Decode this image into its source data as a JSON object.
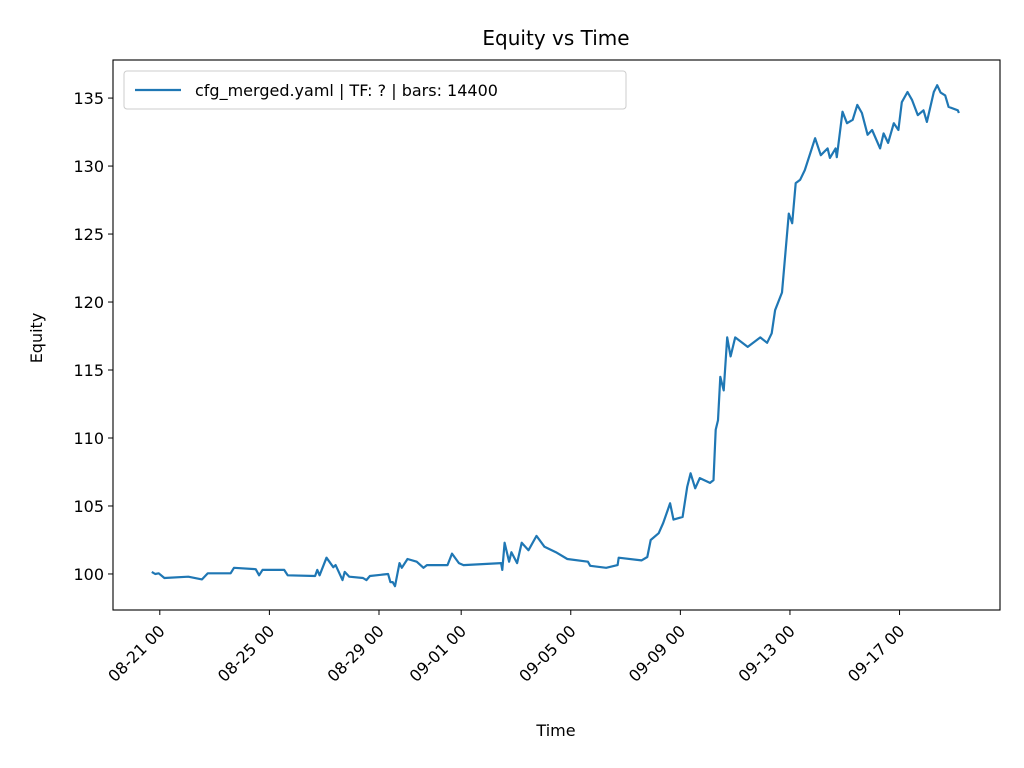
{
  "chart_data": {
    "type": "line",
    "title": "Equity vs Time",
    "xlabel": "Time",
    "ylabel": "Equity",
    "xlim": [
      "08-19 07:00",
      "09-20 16:00"
    ],
    "ylim": [
      97.35,
      137.8
    ],
    "grid": false,
    "legend_position": "top-left",
    "x_ticks": [
      "08-21 00",
      "08-25 00",
      "08-29 00",
      "09-01 00",
      "09-05 00",
      "09-09 00",
      "09-13 00",
      "09-17 00"
    ],
    "y_ticks": [
      100,
      105,
      110,
      115,
      120,
      125,
      130,
      135
    ],
    "series": [
      {
        "name": "cfg_merged.yaml | TF: ? | bars: 14400",
        "color": "#1f77b4",
        "points": [
          [
            "08-20 17:00",
            100.15
          ],
          [
            "08-20 20:00",
            100.0
          ],
          [
            "08-20 23:00",
            100.05
          ],
          [
            "08-21 04:00",
            99.7
          ],
          [
            "08-22 01:00",
            99.8
          ],
          [
            "08-22 13:00",
            99.6
          ],
          [
            "08-22 18:00",
            100.05
          ],
          [
            "08-23 14:00",
            100.05
          ],
          [
            "08-23 17:00",
            100.45
          ],
          [
            "08-24 12:00",
            100.35
          ],
          [
            "08-24 15:00",
            99.9
          ],
          [
            "08-24 18:00",
            100.3
          ],
          [
            "08-25 13:00",
            100.3
          ],
          [
            "08-25 16:00",
            99.9
          ],
          [
            "08-26 16:00",
            99.85
          ],
          [
            "08-26 18:00",
            100.3
          ],
          [
            "08-26 20:00",
            99.9
          ],
          [
            "08-27 02:00",
            101.2
          ],
          [
            "08-27 08:00",
            100.5
          ],
          [
            "08-27 10:00",
            100.65
          ],
          [
            "08-27 16:00",
            99.55
          ],
          [
            "08-27 18:00",
            100.15
          ],
          [
            "08-27 22:00",
            99.8
          ],
          [
            "08-28 10:00",
            99.7
          ],
          [
            "08-28 13:00",
            99.55
          ],
          [
            "08-28 16:00",
            99.85
          ],
          [
            "08-29 08:00",
            100.0
          ],
          [
            "08-29 10:00",
            99.4
          ],
          [
            "08-29 12:00",
            99.4
          ],
          [
            "08-29 14:00",
            99.1
          ],
          [
            "08-29 18:00",
            100.8
          ],
          [
            "08-29 20:00",
            100.45
          ],
          [
            "08-30 01:00",
            101.1
          ],
          [
            "08-30 09:00",
            100.9
          ],
          [
            "08-30 15:00",
            100.45
          ],
          [
            "08-30 18:00",
            100.65
          ],
          [
            "08-31 12:00",
            100.65
          ],
          [
            "08-31 16:00",
            101.5
          ],
          [
            "08-31 22:00",
            100.8
          ],
          [
            "09-01 02:00",
            100.65
          ],
          [
            "09-02 11:00",
            100.8
          ],
          [
            "09-02 12:00",
            100.3
          ],
          [
            "09-02 14:00",
            102.3
          ],
          [
            "09-02 18:00",
            100.9
          ],
          [
            "09-02 20:00",
            101.6
          ],
          [
            "09-03 01:00",
            100.8
          ],
          [
            "09-03 05:00",
            102.3
          ],
          [
            "09-03 11:00",
            101.75
          ],
          [
            "09-03 18:00",
            102.8
          ],
          [
            "09-04 01:00",
            102.0
          ],
          [
            "09-04 11:00",
            101.6
          ],
          [
            "09-04 21:00",
            101.1
          ],
          [
            "09-05 15:00",
            100.9
          ],
          [
            "09-05 17:00",
            100.6
          ],
          [
            "09-06 07:00",
            100.45
          ],
          [
            "09-06 17:00",
            100.65
          ],
          [
            "09-06 18:00",
            101.2
          ],
          [
            "09-07 14:00",
            101.0
          ],
          [
            "09-07 19:00",
            101.25
          ],
          [
            "09-07 22:00",
            102.5
          ],
          [
            "09-08 05:00",
            103.0
          ],
          [
            "09-08 09:00",
            103.75
          ],
          [
            "09-08 15:00",
            105.2
          ],
          [
            "09-08 18:00",
            104.0
          ],
          [
            "09-09 02:00",
            104.2
          ],
          [
            "09-09 06:00",
            106.4
          ],
          [
            "09-09 09:00",
            107.4
          ],
          [
            "09-09 13:00",
            106.3
          ],
          [
            "09-09 17:00",
            107.05
          ],
          [
            "09-10 02:00",
            106.7
          ],
          [
            "09-10 05:00",
            106.9
          ],
          [
            "09-10 07:00",
            110.6
          ],
          [
            "09-10 09:00",
            111.3
          ],
          [
            "09-10 11:00",
            114.5
          ],
          [
            "09-10 14:00",
            113.5
          ],
          [
            "09-10 17:00",
            117.4
          ],
          [
            "09-10 20:00",
            116.0
          ],
          [
            "09-11 00:00",
            117.4
          ],
          [
            "09-11 11:00",
            116.7
          ],
          [
            "09-11 22:00",
            117.4
          ],
          [
            "09-12 04:00",
            117.0
          ],
          [
            "09-12 08:00",
            117.7
          ],
          [
            "09-12 11:00",
            119.4
          ],
          [
            "09-12 17:00",
            120.7
          ],
          [
            "09-12 20:00",
            123.6
          ],
          [
            "09-12 23:00",
            126.5
          ],
          [
            "09-13 02:00",
            125.8
          ],
          [
            "09-13 05:00",
            128.75
          ],
          [
            "09-13 09:00",
            129.0
          ],
          [
            "09-13 13:00",
            129.7
          ],
          [
            "09-13 18:00",
            131.0
          ],
          [
            "09-13 22:00",
            132.05
          ],
          [
            "09-14 03:00",
            130.8
          ],
          [
            "09-14 09:00",
            131.3
          ],
          [
            "09-14 11:00",
            130.6
          ],
          [
            "09-14 16:00",
            131.3
          ],
          [
            "09-14 17:00",
            130.65
          ],
          [
            "09-14 22:00",
            134.0
          ],
          [
            "09-15 02:00",
            133.15
          ],
          [
            "09-15 07:00",
            133.4
          ],
          [
            "09-15 11:00",
            134.5
          ],
          [
            "09-15 15:00",
            133.9
          ],
          [
            "09-15 20:00",
            132.3
          ],
          [
            "09-16 00:00",
            132.65
          ],
          [
            "09-16 07:00",
            131.3
          ],
          [
            "09-16 10:00",
            132.4
          ],
          [
            "09-16 14:00",
            131.7
          ],
          [
            "09-16 19:00",
            133.15
          ],
          [
            "09-16 23:00",
            132.65
          ],
          [
            "09-17 02:00",
            134.7
          ],
          [
            "09-17 07:00",
            135.45
          ],
          [
            "09-17 11:00",
            134.85
          ],
          [
            "09-17 16:00",
            133.75
          ],
          [
            "09-17 21:00",
            134.1
          ],
          [
            "09-18 00:00",
            133.25
          ],
          [
            "09-18 06:00",
            135.45
          ],
          [
            "09-18 09:00",
            135.95
          ],
          [
            "09-18 12:00",
            135.4
          ],
          [
            "09-18 16:00",
            135.2
          ],
          [
            "09-18 19:00",
            134.35
          ],
          [
            "09-19 03:00",
            134.1
          ],
          [
            "09-19 04:00",
            133.9
          ]
        ]
      }
    ]
  }
}
